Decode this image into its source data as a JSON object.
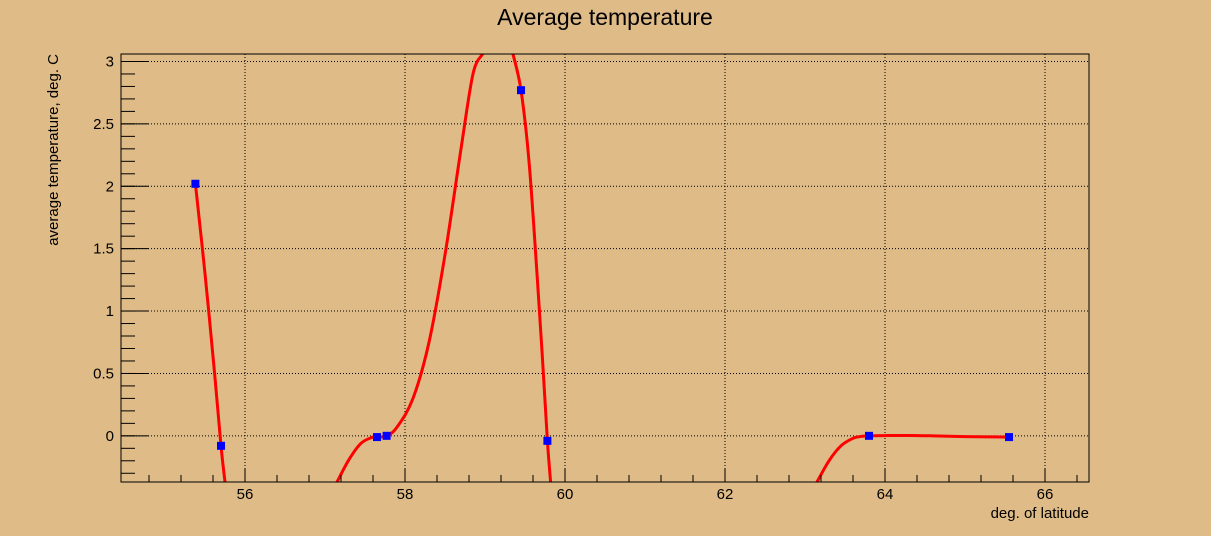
{
  "chart_data": {
    "type": "line",
    "title": "Average temperature",
    "xlabel": "deg. of latitude",
    "ylabel": "average temperature, deg. C",
    "xlim": [
      54.45,
      66.55
    ],
    "ylim": [
      -0.37,
      3.06
    ],
    "xticks": [
      {
        "value": 56,
        "label": "56"
      },
      {
        "value": 58,
        "label": "58"
      },
      {
        "value": 60,
        "label": "60"
      },
      {
        "value": 62,
        "label": "62"
      },
      {
        "value": 64,
        "label": "64"
      },
      {
        "value": 66,
        "label": "66"
      }
    ],
    "yticks": [
      {
        "value": 0,
        "label": "0"
      },
      {
        "value": 0.5,
        "label": "0.5"
      },
      {
        "value": 1,
        "label": "1"
      },
      {
        "value": 1.5,
        "label": "1.5"
      },
      {
        "value": 2,
        "label": "2"
      },
      {
        "value": 2.5,
        "label": "2.5"
      },
      {
        "value": 3,
        "label": "3"
      }
    ],
    "grid": true,
    "colors": {
      "background": "#dfbb87",
      "curve": "#ff0000",
      "markers": "#0000ff",
      "axes": "#000000"
    },
    "series": [
      {
        "kind": "markers",
        "x": [
          55.38,
          55.7,
          57.65,
          57.77,
          59.45,
          59.78,
          63.8,
          65.55
        ],
        "y": [
          2.02,
          -0.08,
          -0.01,
          0.0,
          2.77,
          -0.04,
          0.0,
          -0.01
        ]
      },
      {
        "kind": "curve",
        "segments": [
          {
            "x": [
              55.38,
              55.5,
              55.62,
              55.7,
              55.75
            ],
            "y": [
              2.02,
              1.3,
              0.5,
              -0.08,
              -0.37
            ]
          },
          {
            "x": [
              57.15,
              57.3,
              57.45,
              57.6,
              57.65,
              57.77,
              57.9,
              58.1,
              58.3,
              58.5,
              58.7,
              58.85,
              58.97
            ],
            "y": [
              -0.37,
              -0.19,
              -0.06,
              -0.01,
              -0.01,
              0.0,
              0.07,
              0.3,
              0.75,
              1.45,
              2.3,
              2.9,
              3.06
            ]
          },
          {
            "x": [
              59.35,
              59.45,
              59.55,
              59.65,
              59.72,
              59.78,
              59.82
            ],
            "y": [
              3.06,
              2.77,
              2.2,
              1.3,
              0.6,
              -0.04,
              -0.37
            ]
          },
          {
            "x": [
              63.15,
              63.3,
              63.45,
              63.6,
              63.7,
              63.8,
              64.0,
              64.3,
              64.6,
              65.0,
              65.3,
              65.55
            ],
            "y": [
              -0.37,
              -0.2,
              -0.08,
              -0.02,
              -0.005,
              0.0,
              0.002,
              0.003,
              0.0,
              -0.006,
              -0.008,
              -0.01
            ]
          }
        ]
      }
    ]
  }
}
